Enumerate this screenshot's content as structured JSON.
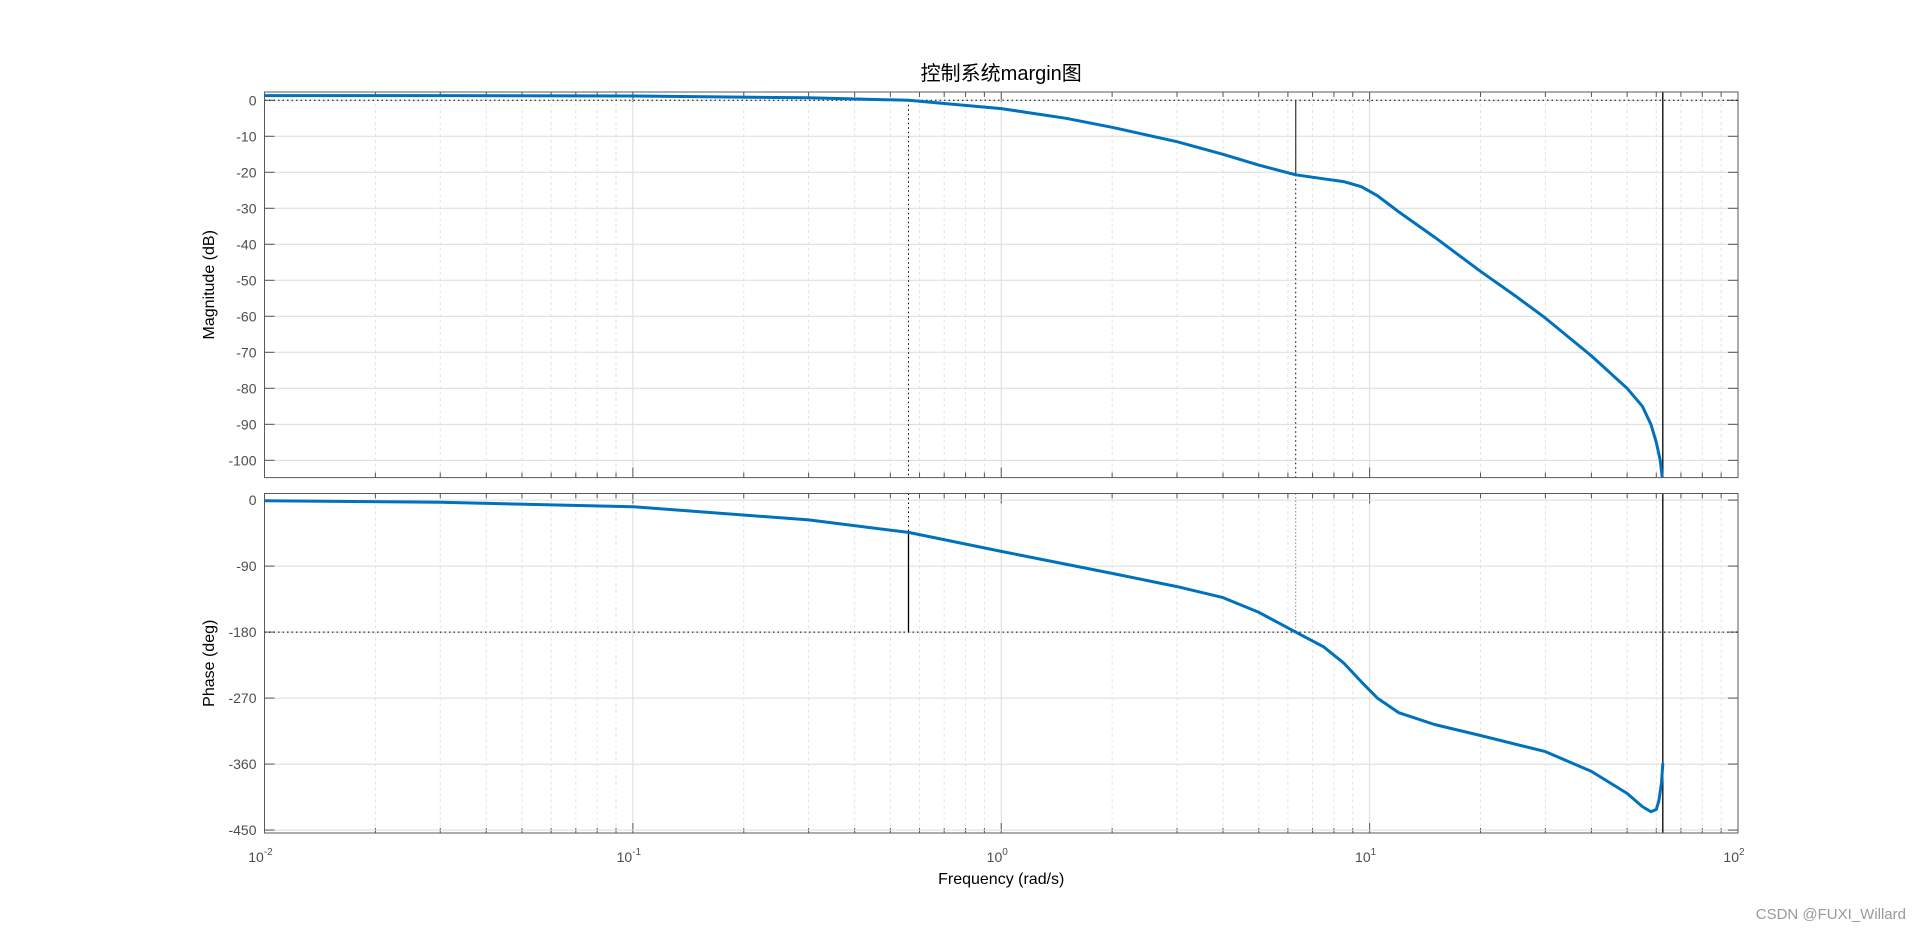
{
  "chart_data": {
    "type": "line",
    "title": "控制系统margin图",
    "xlabel": "Frequency  (rad/s)",
    "xscale": "log",
    "xlim": [
      0.01,
      100
    ],
    "x_ticks": [
      {
        "base": "10",
        "exp": "-2"
      },
      {
        "base": "10",
        "exp": "-1"
      },
      {
        "base": "10",
        "exp": "0"
      },
      {
        "base": "10",
        "exp": "1"
      },
      {
        "base": "10",
        "exp": "2"
      }
    ],
    "grid": true,
    "panels": [
      {
        "name": "magnitude",
        "ylabel": "Magnitude (dB)",
        "ylim": [
          -104.8,
          2.3
        ],
        "y_ticks": [
          0,
          -10,
          -20,
          -30,
          -40,
          -50,
          -60,
          -70,
          -80,
          -90,
          -100
        ],
        "series": [
          {
            "name": "Magnitude",
            "color": "#0072BD",
            "x": [
              0.01,
              0.03,
              0.1,
              0.3,
              0.56,
              1,
              1.5,
              2,
              3,
              4,
              5,
              6.3,
              7.5,
              8.5,
              9.5,
              10.5,
              12,
              15,
              20,
              25,
              30,
              40,
              50,
              55,
              58,
              60,
              61.5,
              62.5
            ],
            "y": [
              1.3,
              1.3,
              1.2,
              0.7,
              0,
              -2.3,
              -5,
              -7.5,
              -11.5,
              -15,
              -18,
              -20.7,
              -21.8,
              -22.6,
              -24,
              -26.5,
              -31,
              -38,
              -47.5,
              -54.5,
              -60.5,
              -71,
              -80,
              -85,
              -90,
              -95,
              -100,
              -106
            ]
          }
        ]
      },
      {
        "name": "phase",
        "ylabel": "Phase (deg)",
        "ylim": [
          -454,
          9
        ],
        "y_ticks": [
          0,
          -90,
          -180,
          -270,
          -360,
          -450
        ],
        "series": [
          {
            "name": "Phase",
            "color": "#0072BD",
            "x": [
              0.01,
              0.03,
              0.1,
              0.3,
              0.56,
              1,
              2,
              3,
              4,
              5,
              6.3,
              7.5,
              8.5,
              9.5,
              10.5,
              12,
              15,
              20,
              30,
              40,
              50,
              55,
              58,
              60,
              61,
              62,
              62.5
            ],
            "y": [
              -1,
              -3,
              -9,
              -27,
              -44,
              -70,
              -100,
              -118,
              -133,
              -153,
              -180,
              -200,
              -222,
              -248,
              -270,
              -290,
              -306,
              -321,
              -343,
              -370,
              -400,
              -418,
              -425,
              -422,
              -410,
              -385,
              -360
            ]
          }
        ]
      }
    ],
    "margins": {
      "gain_crossover_freq": 0.56,
      "phase_at_gain_crossover": -44,
      "phase_crossover_freq": 6.3,
      "magnitude_at_phase_crossover": -20.7,
      "marker_freq": 62.5
    },
    "watermark": "CSDN @FUXI_Willard"
  }
}
